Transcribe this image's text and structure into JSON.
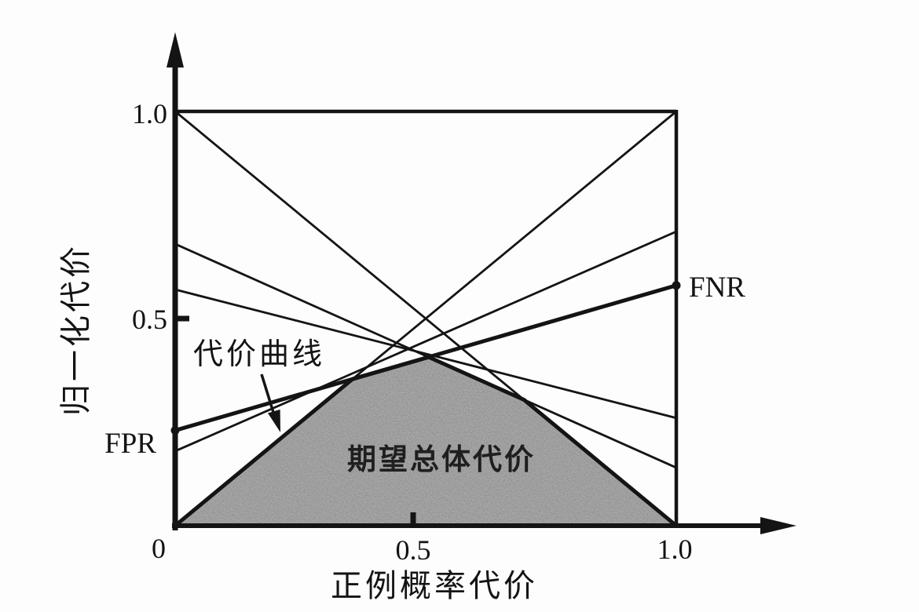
{
  "figure": {
    "labels": {
      "y_axis_title": "归一化代价",
      "x_axis_title": "正例概率代价",
      "y_tick_10": "1.0",
      "y_tick_05": "0.5",
      "x_tick_0": "0",
      "x_tick_05": "0.5",
      "x_tick_10": "1.0",
      "fpr": "FPR",
      "fnr": "FNR",
      "cost_curve": "代价曲线",
      "expected_overall_cost": "期望总体代价"
    },
    "colors": {
      "ink": "#141414",
      "shade": "#b2b2b2",
      "shade_text": "#1f1f1f",
      "background": "#fdfdfd"
    }
  },
  "chart_data": {
    "type": "line",
    "title": "",
    "xlabel": "正例概率代价",
    "ylabel": "归一化代价",
    "xlim": [
      0,
      1
    ],
    "ylim": [
      0,
      1
    ],
    "grid": false,
    "legend": "none",
    "x_ticks": [
      {
        "value": 0,
        "label": "0"
      },
      {
        "value": 0.5,
        "label": "0.5"
      },
      {
        "value": 1.0,
        "label": "1.0"
      }
    ],
    "y_ticks": [
      {
        "value": 0.5,
        "label": "0.5"
      },
      {
        "value": 1.0,
        "label": "1.0"
      }
    ],
    "series": [
      {
        "name": "cost-line-1",
        "points": [
          [
            0,
            1.0
          ],
          [
            1,
            0.0
          ]
        ],
        "style": "thin"
      },
      {
        "name": "cost-line-2",
        "points": [
          [
            0,
            0.0
          ],
          [
            1,
            1.0
          ]
        ],
        "style": "thin"
      },
      {
        "name": "highlighted-cost-line",
        "points": [
          [
            0,
            0.23
          ],
          [
            1,
            0.58
          ]
        ],
        "style": "thick",
        "endpoint_markers": true,
        "start_label": "FPR",
        "end_label": "FNR"
      },
      {
        "name": "cost-line-4",
        "points": [
          [
            0,
            0.18
          ],
          [
            1,
            0.71
          ]
        ],
        "style": "thin"
      },
      {
        "name": "cost-line-5",
        "points": [
          [
            0,
            0.68
          ],
          [
            1,
            0.14
          ]
        ],
        "style": "thin"
      },
      {
        "name": "cost-line-6",
        "points": [
          [
            0,
            0.57
          ],
          [
            1,
            0.26
          ]
        ],
        "style": "thin"
      }
    ],
    "envelope": {
      "label": "期望总体代价",
      "points": [
        [
          0,
          0
        ],
        [
          0.354,
          0.354
        ],
        [
          0.506,
          0.407
        ],
        [
          0.696,
          0.304
        ],
        [
          1,
          0
        ]
      ]
    },
    "annotations": [
      {
        "text": "代价曲线",
        "target": "lower-envelope-curve"
      },
      {
        "text": "期望总体代价",
        "target": "shaded-area"
      },
      {
        "text": "FPR",
        "target": "highlighted-line-left-endpoint"
      },
      {
        "text": "FNR",
        "target": "highlighted-line-right-endpoint"
      }
    ]
  }
}
